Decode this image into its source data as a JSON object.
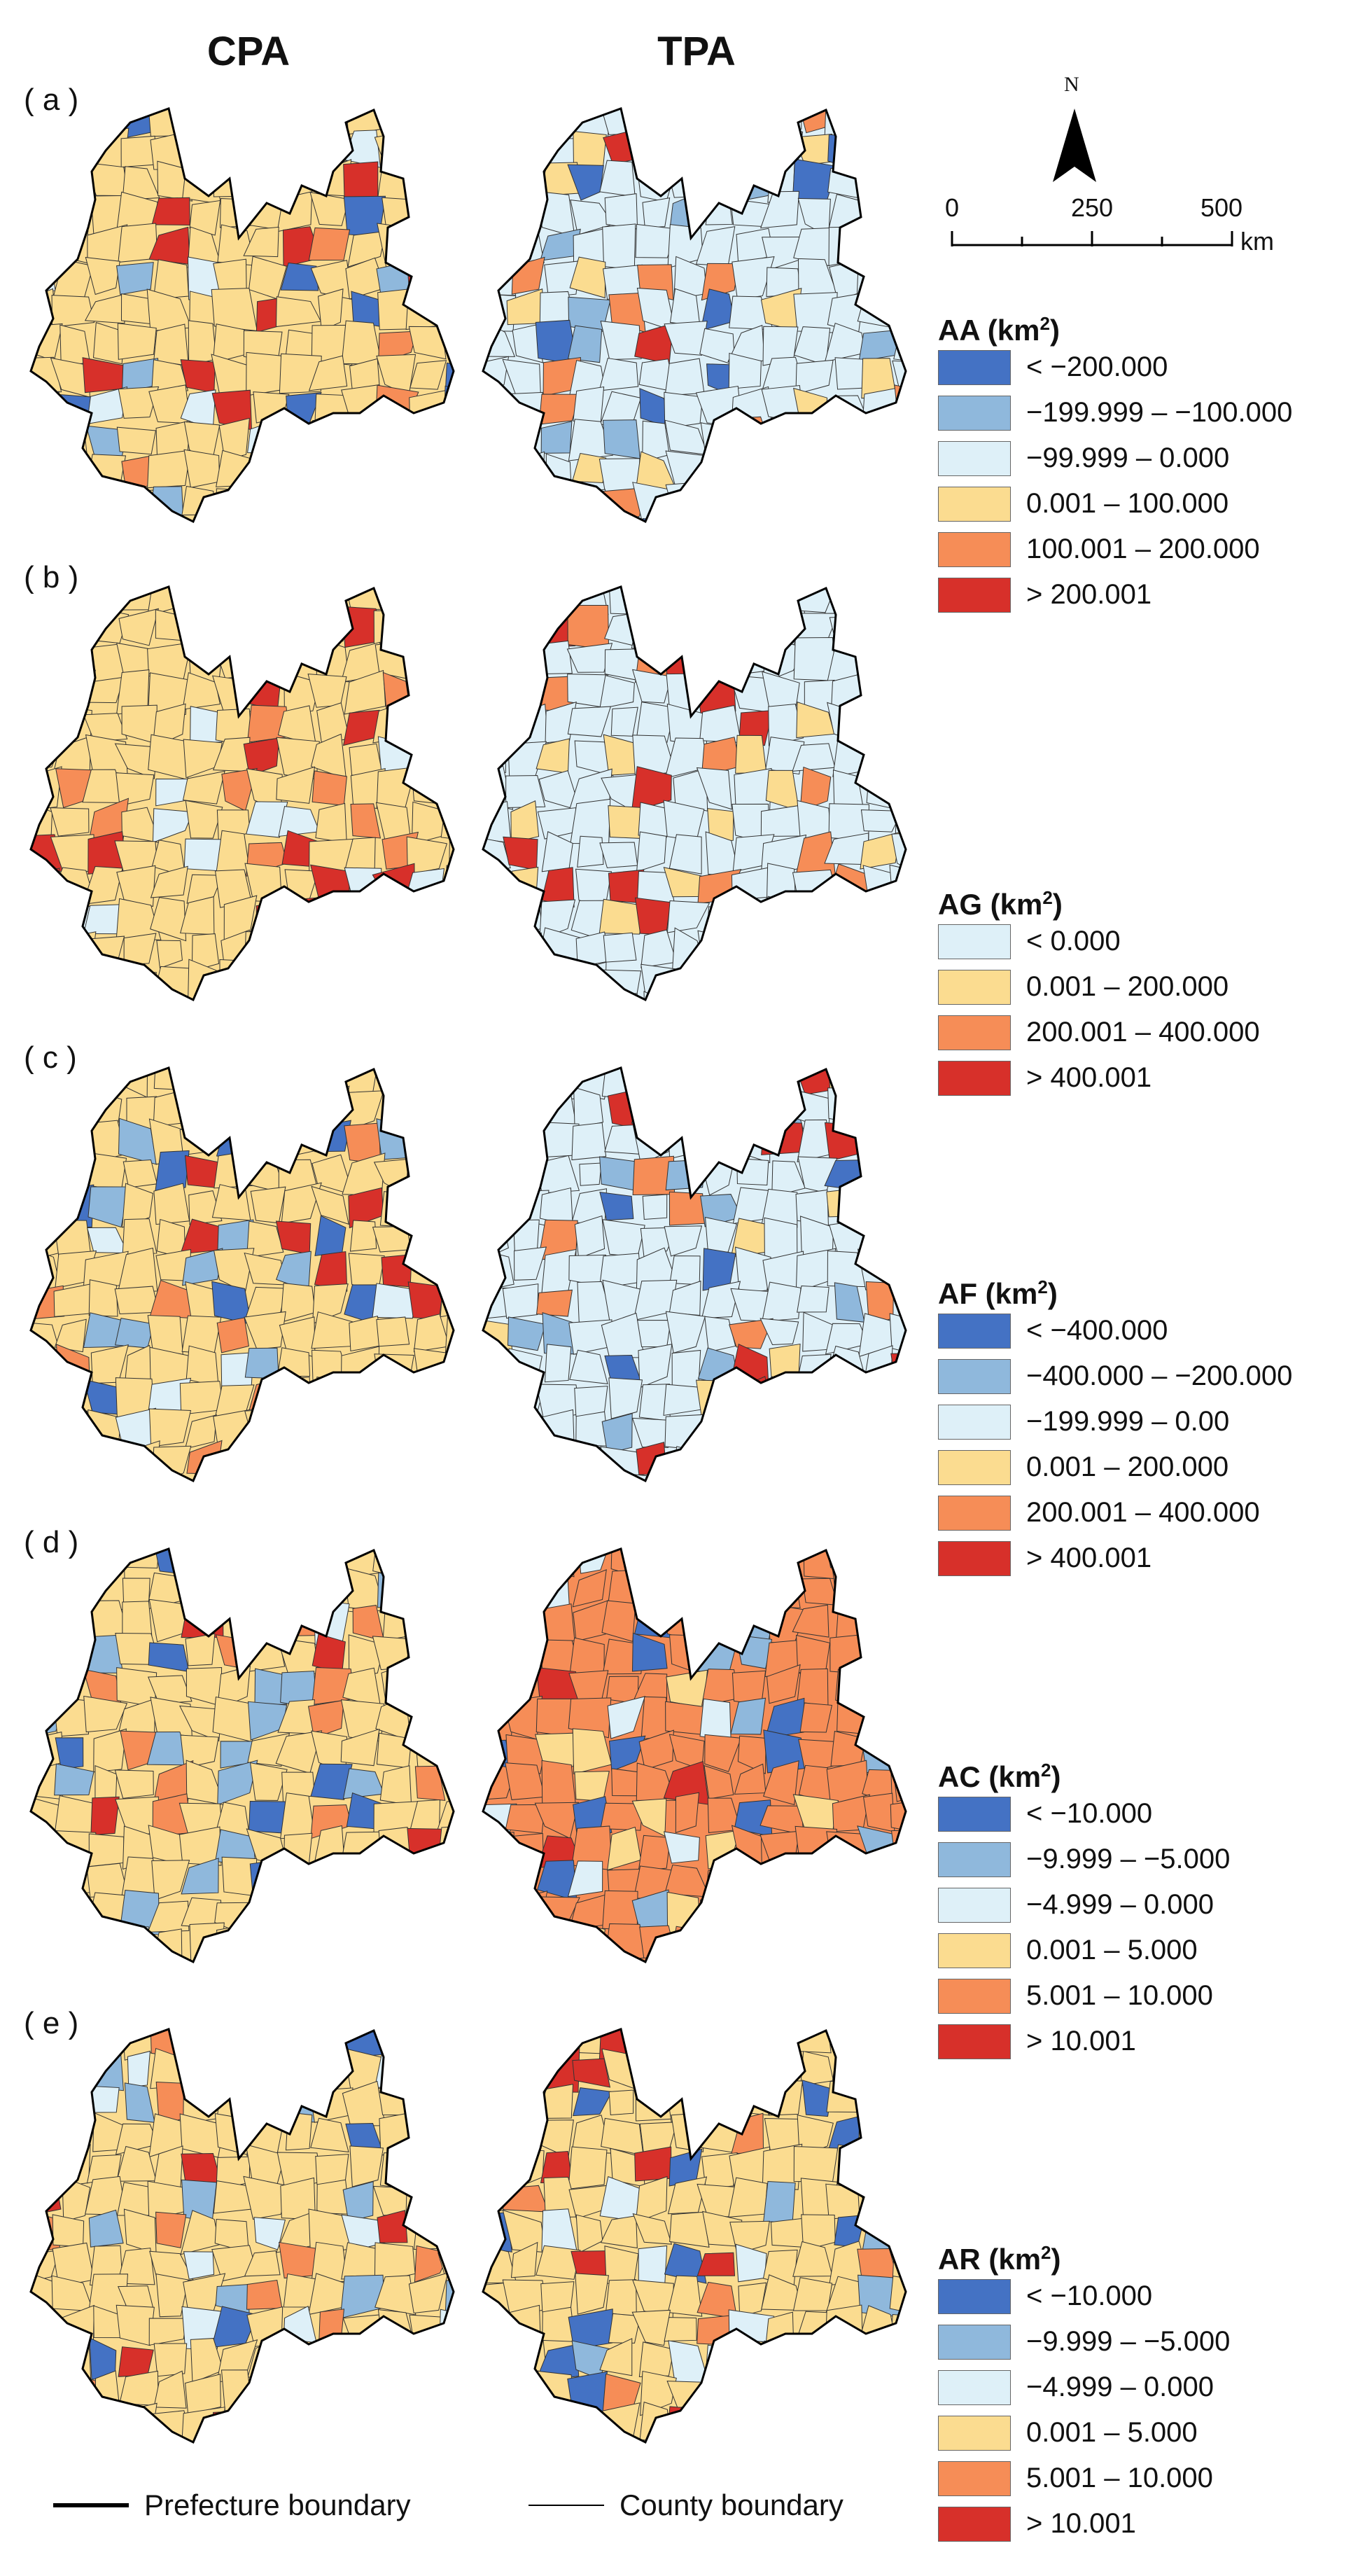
{
  "columns": [
    "CPA",
    "TPA"
  ],
  "panels": [
    {
      "label": "( a )",
      "legend": {
        "title": "AA",
        "unit": "(km",
        "unit_sup": "2",
        "unit_end": ")",
        "classes": [
          {
            "label": "< −200.000",
            "color": "#4472c4"
          },
          {
            "label": "−199.999 – −100.000",
            "color": "#8fb8dc"
          },
          {
            "label": "−99.999 – 0.000",
            "color": "#def0f8"
          },
          {
            "label": "0.001 – 100.000",
            "color": "#fbdc90"
          },
          {
            "label": "100.001 – 200.000",
            "color": "#f68d57"
          },
          {
            "label": "> 200.001",
            "color": "#d7302a"
          }
        ],
        "cpa_dominant": "#fbdc90",
        "tpa_dominant": "#def0f8"
      }
    },
    {
      "label": "( b )",
      "legend": {
        "title": "AG",
        "unit": "(km",
        "unit_sup": "2",
        "unit_end": ")",
        "classes": [
          {
            "label": "< 0.000",
            "color": "#def0f8"
          },
          {
            "label": "0.001 – 200.000",
            "color": "#fbdc90"
          },
          {
            "label": "200.001 – 400.000",
            "color": "#f68d57"
          },
          {
            "label": "> 400.001",
            "color": "#d7302a"
          }
        ],
        "cpa_dominant": "#fbdc90",
        "tpa_dominant": "#def0f8"
      }
    },
    {
      "label": "( c )",
      "legend": {
        "title": "AF",
        "unit": "(km",
        "unit_sup": "2",
        "unit_end": ")",
        "classes": [
          {
            "label": "< −400.000",
            "color": "#4472c4"
          },
          {
            "label": "−400.000 – −200.000",
            "color": "#8fb8dc"
          },
          {
            "label": "−199.999 – 0.00",
            "color": "#def0f8"
          },
          {
            "label": "0.001 – 200.000",
            "color": "#fbdc90"
          },
          {
            "label": "200.001 – 400.000",
            "color": "#f68d57"
          },
          {
            "label": "> 400.001",
            "color": "#d7302a"
          }
        ],
        "cpa_dominant": "#fbdc90",
        "tpa_dominant": "#def0f8"
      }
    },
    {
      "label": "( d )",
      "legend": {
        "title": "AC",
        "unit": "(km",
        "unit_sup": "2",
        "unit_end": ")",
        "classes": [
          {
            "label": "< −10.000",
            "color": "#4472c4"
          },
          {
            "label": "−9.999 – −5.000",
            "color": "#8fb8dc"
          },
          {
            "label": "−4.999 – 0.000",
            "color": "#def0f8"
          },
          {
            "label": "0.001 – 5.000",
            "color": "#fbdc90"
          },
          {
            "label": "5.001 – 10.000",
            "color": "#f68d57"
          },
          {
            "label": "> 10.001",
            "color": "#d7302a"
          }
        ],
        "cpa_dominant": "#fbdc90",
        "tpa_dominant": "#f68d57"
      }
    },
    {
      "label": "( e )",
      "legend": {
        "title": "AR",
        "unit": "(km",
        "unit_sup": "2",
        "unit_end": ")",
        "classes": [
          {
            "label": "< −10.000",
            "color": "#4472c4"
          },
          {
            "label": "−9.999 – −5.000",
            "color": "#8fb8dc"
          },
          {
            "label": "−4.999 – 0.000",
            "color": "#def0f8"
          },
          {
            "label": "0.001 – 5.000",
            "color": "#fbdc90"
          },
          {
            "label": "5.001 – 10.000",
            "color": "#f68d57"
          },
          {
            "label": "> 10.001",
            "color": "#d7302a"
          }
        ],
        "cpa_dominant": "#fbdc90",
        "tpa_dominant": "#fbdc90"
      }
    }
  ],
  "north_arrow": {
    "label": "N"
  },
  "scale_bar": {
    "ticks": [
      "0",
      "250",
      "500"
    ],
    "unit": "km"
  },
  "boundary_legend": {
    "prefecture": "Prefecture boundary",
    "county": "County boundary"
  }
}
